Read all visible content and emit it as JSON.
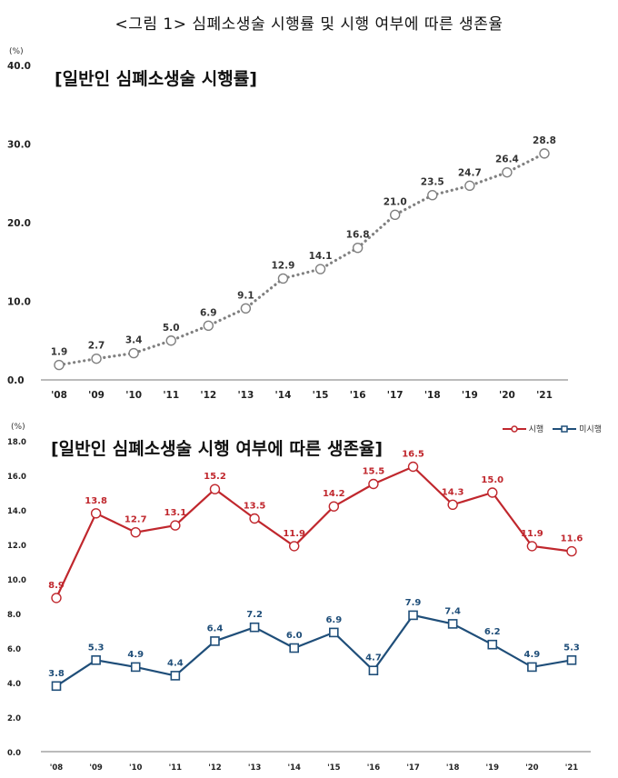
{
  "figure_title": "<그림 1> 심폐소생술 시행률 및 시행 여부에 따른 생존율",
  "chart_data": [
    {
      "type": "line",
      "title": "[일반인 심폐소생술 시행률]",
      "unit": "(%)",
      "categories": [
        "'08",
        "'09",
        "'10",
        "'11",
        "'12",
        "'13",
        "'14",
        "'15",
        "'16",
        "'17",
        "'18",
        "'19",
        "'20",
        "'21"
      ],
      "series": [
        {
          "values": [
            1.9,
            2.7,
            3.4,
            5.0,
            6.9,
            9.1,
            12.9,
            14.1,
            16.8,
            21.0,
            23.5,
            24.7,
            26.4,
            28.8
          ],
          "labels": [
            "1.9",
            "2.7",
            "3.4",
            "5.0",
            "6.9",
            "9.1",
            "12.9",
            "14.1",
            "16.8",
            "21.0",
            "23.5",
            "24.7",
            "26.4",
            "28.8"
          ],
          "color": "#808080",
          "style": "dotted",
          "marker": "circle"
        }
      ],
      "ylim": [
        0,
        40
      ],
      "yticks": [
        0,
        10,
        20,
        30,
        40
      ],
      "ytick_labels": [
        "0.0",
        "10.0",
        "20.0",
        "30.0",
        "40.0"
      ],
      "grid": false
    },
    {
      "type": "line",
      "title": "[일반인 심폐소생술 시행 여부에 따른 생존율]",
      "unit": "(%)",
      "categories": [
        "'08",
        "'09",
        "'10",
        "'11",
        "'12",
        "'13",
        "'14",
        "'15",
        "'16",
        "'17",
        "'18",
        "'19",
        "'20",
        "'21"
      ],
      "series": [
        {
          "name": "시행",
          "values": [
            8.9,
            13.8,
            12.7,
            13.1,
            15.2,
            13.5,
            11.9,
            14.2,
            15.5,
            16.5,
            14.3,
            15.0,
            11.9,
            11.6
          ],
          "labels": [
            "8.9",
            "13.8",
            "12.7",
            "13.1",
            "15.2",
            "13.5",
            "11.9",
            "14.2",
            "15.5",
            "16.5",
            "14.3",
            "15.0",
            "11.9",
            "11.6"
          ],
          "color": "#c0272d",
          "marker": "circle"
        },
        {
          "name": "미시행",
          "values": [
            3.8,
            5.3,
            4.9,
            4.4,
            6.4,
            7.2,
            6.0,
            6.9,
            4.7,
            7.9,
            7.4,
            6.2,
            4.9,
            5.3
          ],
          "labels": [
            "3.8",
            "5.3",
            "4.9",
            "4.4",
            "6.4",
            "7.2",
            "6.0",
            "6.9",
            "4.7",
            "7.9",
            "7.4",
            "6.2",
            "4.9",
            "5.3"
          ],
          "color": "#1f4e79",
          "marker": "square"
        }
      ],
      "ylim": [
        0,
        18
      ],
      "yticks": [
        0,
        2,
        4,
        6,
        8,
        10,
        12,
        14,
        16,
        18
      ],
      "ytick_labels": [
        "0.0",
        "2.0",
        "4.0",
        "6.0",
        "8.0",
        "10.0",
        "12.0",
        "14.0",
        "16.0",
        "18.0"
      ],
      "legend_position": "top-right",
      "grid": false
    }
  ]
}
